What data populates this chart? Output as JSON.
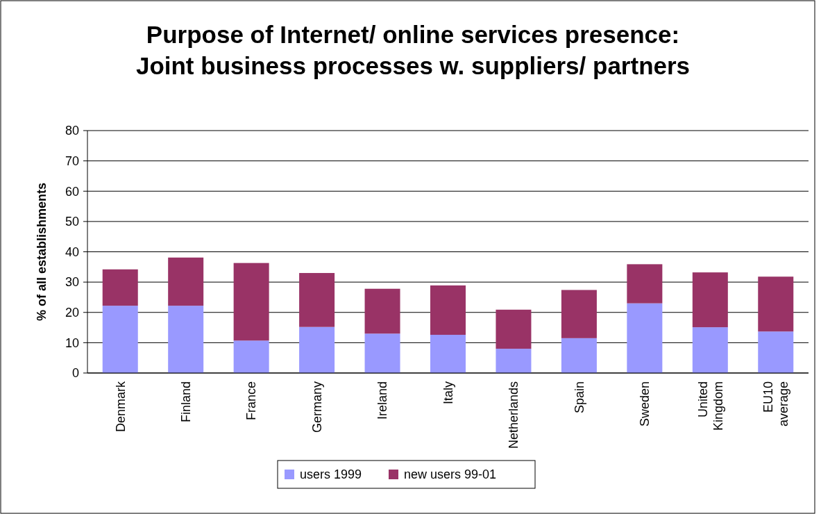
{
  "chart_data": {
    "type": "bar",
    "title": "Purpose of Internet/ online services presence:\nJoint business processes w. suppliers/ partners",
    "ylabel": "% of all establishments",
    "categories": [
      "Denmark",
      "Finland",
      "France",
      "Germany",
      "Ireland",
      "Italy",
      "Netherlands",
      "Spain",
      "Sweden",
      "United\nKingdom",
      "EU10\naverage"
    ],
    "stacked": true,
    "series": [
      {
        "name": "users 1999",
        "color": "#9999ff",
        "values": [
          22.2,
          22.2,
          10.7,
          15.2,
          13.0,
          12.6,
          8.0,
          11.5,
          23.0,
          15.1,
          13.7
        ]
      },
      {
        "name": "new users 99-01",
        "color": "#993366",
        "values": [
          12.0,
          15.9,
          25.6,
          17.8,
          14.8,
          16.3,
          12.9,
          15.9,
          12.9,
          18.1,
          18.1
        ]
      }
    ],
    "ylim": [
      0,
      80
    ],
    "yticks": [
      0,
      10,
      20,
      30,
      40,
      50,
      60,
      70,
      80
    ],
    "grid": "y",
    "legend": "bottom"
  }
}
